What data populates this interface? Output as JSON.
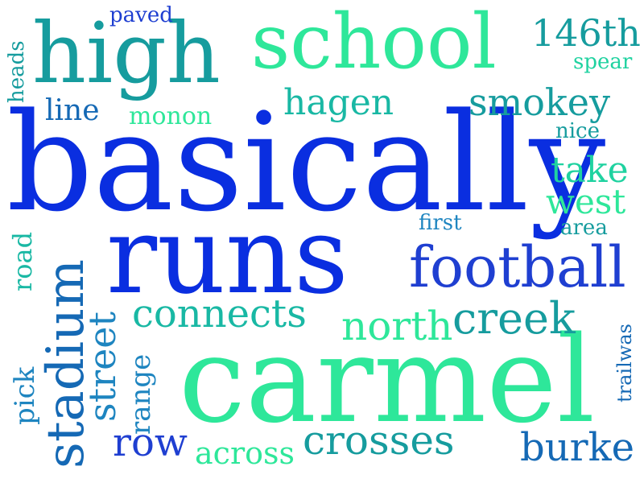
{
  "background": "#ffffff",
  "palette": {
    "royal_blue": "#0a2ee0",
    "deep_blue": "#1f3fd1",
    "steel_blue": "#1569b5",
    "mid_blue": "#1e85c0",
    "teal": "#169c9e",
    "sea_green": "#19b8a4",
    "aqua_green": "#1fd2a0",
    "mint": "#2ee79a"
  },
  "words": {
    "basically": {
      "text": "basically",
      "color": "#0a2ee0"
    },
    "carmel": {
      "text": "carmel",
      "color": "#2ee79a"
    },
    "runs": {
      "text": "runs",
      "color": "#0a2ee0"
    },
    "high": {
      "text": "high",
      "color": "#169c9e"
    },
    "school": {
      "text": "school",
      "color": "#2ee79a"
    },
    "football": {
      "text": "football",
      "color": "#1f3fd1"
    },
    "stadium": {
      "text": "stadium",
      "color": "#1569b5"
    },
    "creek": {
      "text": "creek",
      "color": "#169c9e"
    },
    "crosses": {
      "text": "crosses",
      "color": "#169c9e"
    },
    "north": {
      "text": "north",
      "color": "#2ee79a"
    },
    "burke": {
      "text": "burke",
      "color": "#1569b5"
    },
    "connects": {
      "text": "connects",
      "color": "#19b8a4"
    },
    "row": {
      "text": "row",
      "color": "#1f3fd1"
    },
    "street": {
      "text": "street",
      "color": "#1e85c0"
    },
    "smokey": {
      "text": "smokey",
      "color": "#169c9e"
    },
    "hagen": {
      "text": "hagen",
      "color": "#19b8a4"
    },
    "take": {
      "text": "take",
      "color": "#1fd2a0"
    },
    "west": {
      "text": "west",
      "color": "#2ee79a"
    },
    "146th": {
      "text": "146th",
      "color": "#169c9e"
    },
    "across": {
      "text": "across",
      "color": "#2ee79a"
    },
    "range": {
      "text": "range",
      "color": "#1e85c0"
    },
    "pick": {
      "text": "pick",
      "color": "#1e85c0"
    },
    "road": {
      "text": "road",
      "color": "#19b8a4"
    },
    "line": {
      "text": "line",
      "color": "#1569b5"
    },
    "monon": {
      "text": "monon",
      "color": "#2ee79a"
    },
    "heads": {
      "text": "heads",
      "color": "#169c9e"
    },
    "paved": {
      "text": "paved",
      "color": "#1f3fd1"
    },
    "spear": {
      "text": "spear",
      "color": "#1fd2a0"
    },
    "nice": {
      "text": "nice",
      "color": "#169c9e"
    },
    "first": {
      "text": "first",
      "color": "#1e85c0"
    },
    "area": {
      "text": "area",
      "color": "#169c9e"
    },
    "trailwas": {
      "text": "trailwas",
      "color": "#1569b5"
    }
  }
}
